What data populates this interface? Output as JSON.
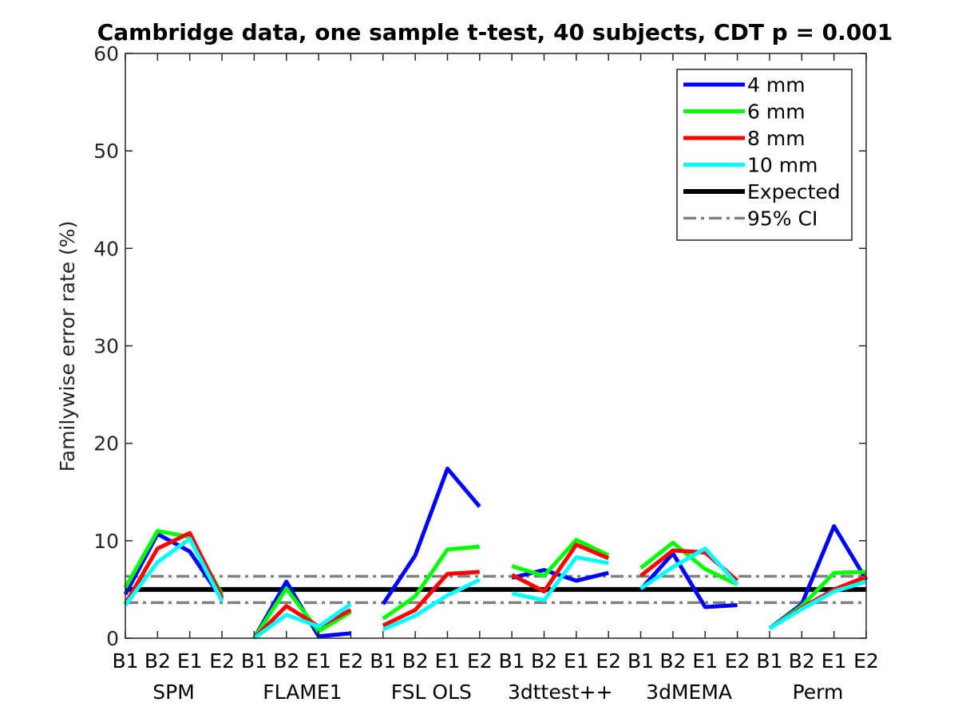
{
  "chart_data": {
    "type": "line",
    "title": "Cambridge data, one sample t-test, 40 subjects, CDT p = 0.001",
    "xlabel": "",
    "ylabel": "Familywise error rate (%)",
    "ylim": [
      0,
      60
    ],
    "yticks": [
      0,
      10,
      20,
      30,
      40,
      50,
      60
    ],
    "grid": false,
    "legend_placement": "top-right",
    "tick_labels": [
      "B1",
      "B2",
      "E1",
      "E2",
      "B1",
      "B2",
      "E1",
      "E2",
      "B1",
      "B2",
      "E1",
      "E2",
      "B1",
      "B2",
      "E1",
      "E2",
      "B1",
      "B2",
      "E1",
      "E2",
      "B1",
      "B2",
      "E1",
      "E2"
    ],
    "groups": [
      {
        "label": "SPM",
        "start": 1,
        "end": 4
      },
      {
        "label": "FLAME1",
        "start": 5,
        "end": 8
      },
      {
        "label": "FSL OLS",
        "start": 9,
        "end": 12
      },
      {
        "label": "3dttest++",
        "start": 13,
        "end": 16
      },
      {
        "label": "3dMEMA",
        "start": 17,
        "end": 20
      },
      {
        "label": "Perm",
        "start": 21,
        "end": 24
      }
    ],
    "series": [
      {
        "name": "4 mm",
        "color": "#0000ff",
        "values": [
          4.5,
          10.7,
          8.9,
          4.0,
          0.0,
          5.8,
          0.2,
          0.5,
          3.5,
          8.5,
          17.4,
          13.5,
          6.2,
          7.0,
          5.9,
          6.7,
          5.0,
          8.7,
          3.2,
          3.4,
          1.0,
          3.5,
          11.5,
          6.0
        ]
      },
      {
        "name": "6 mm",
        "color": "#00ff00",
        "values": [
          5.2,
          11.0,
          10.4,
          4.5,
          0.0,
          5.1,
          0.7,
          2.7,
          2.0,
          4.3,
          9.1,
          9.4,
          7.4,
          6.4,
          10.1,
          8.5,
          7.2,
          9.8,
          7.1,
          5.5,
          1.0,
          3.3,
          6.7,
          6.8
        ]
      },
      {
        "name": "8 mm",
        "color": "#ff0000",
        "values": [
          3.5,
          9.2,
          10.8,
          4.2,
          0.0,
          3.3,
          1.2,
          2.9,
          1.3,
          2.9,
          6.6,
          6.8,
          6.5,
          4.8,
          9.6,
          8.2,
          6.4,
          9.0,
          8.8,
          5.9,
          1.0,
          3.1,
          5.0,
          6.3
        ]
      },
      {
        "name": "10 mm",
        "color": "#00ffff",
        "values": [
          3.4,
          7.8,
          10.2,
          3.8,
          0.0,
          2.4,
          1.2,
          3.5,
          0.9,
          2.3,
          4.4,
          6.0,
          4.6,
          3.9,
          8.3,
          7.7,
          5.1,
          7.3,
          9.2,
          5.5,
          1.0,
          3.0,
          4.8,
          5.8
        ]
      }
    ],
    "reference_lines": [
      {
        "name": "Expected",
        "y": 5.0,
        "color": "#000000",
        "style": "solid"
      },
      {
        "name": "95% CI",
        "y": [
          3.65,
          6.35
        ],
        "color": "#808080",
        "style": "dash-dot"
      }
    ]
  }
}
